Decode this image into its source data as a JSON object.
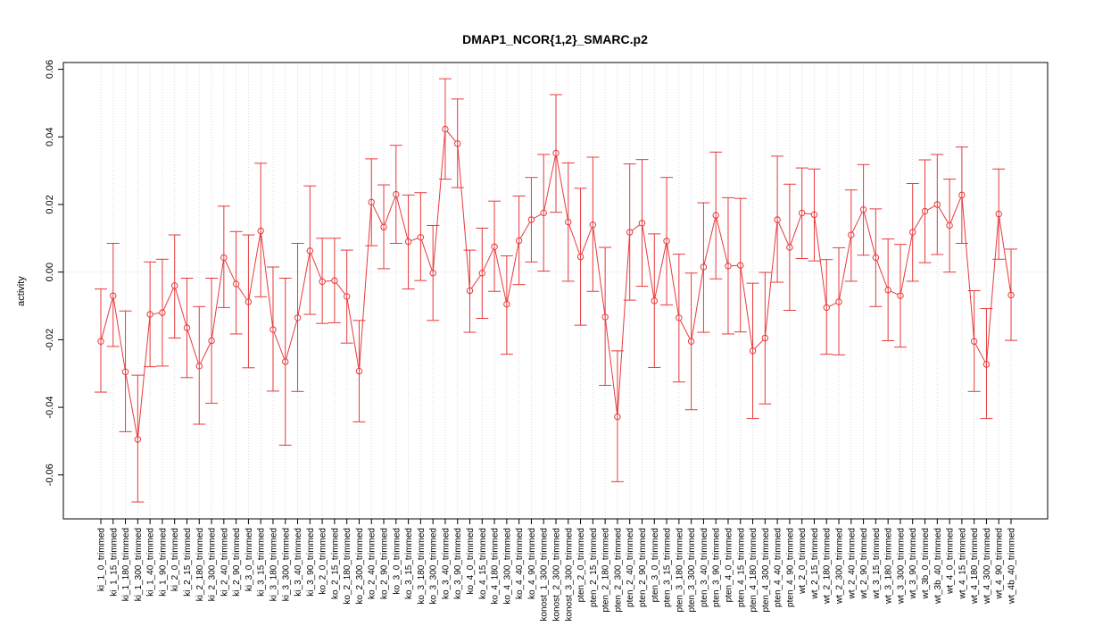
{
  "chart_data": {
    "type": "line",
    "title": "DMAP1_NCOR{1,2}_SMARC.p2",
    "xlabel": "",
    "ylabel": "activity",
    "ylim": [
      -0.073,
      0.062
    ],
    "yticks": [
      -0.06,
      -0.04,
      -0.02,
      0.0,
      0.02,
      0.04,
      0.06
    ],
    "ytick_labels": [
      "-0.06",
      "-0.04",
      "-0.02",
      "0.00",
      "0.02",
      "0.04",
      "0.06"
    ],
    "grid": true,
    "legend": "none",
    "colors": {
      "series": "#e8393b",
      "grid": "#d3d3d3",
      "axis": "#000000"
    },
    "series": [
      {
        "categories": [
          "ki_1_0_trimmed",
          "ki_1_15_trimmed",
          "ki_1_180_trimmed",
          "ki_1_300_trimmed",
          "ki_1_40_trimmed",
          "ki_1_90_trimmed",
          "ki_2_0_trimmed",
          "ki_2_15_trimmed",
          "ki_2_180_trimmed",
          "ki_2_300_trimmed",
          "ki_2_40_trimmed",
          "ki_2_90_trimmed",
          "ki_3_0_trimmed",
          "ki_3_15_trimmed",
          "ki_3_180_trimmed",
          "ki_3_300_trimmed",
          "ki_3_40_trimmed",
          "ki_3_90_trimmed",
          "ko_2_0_trimmed",
          "ko_2_15_trimmed",
          "ko_2_180_trimmed",
          "ko_2_300_trimmed",
          "ko_2_40_trimmed",
          "ko_2_90_trimmed",
          "ko_3_0_trimmed",
          "ko_3_15_trimmed",
          "ko_3_180_trimmed",
          "ko_3_300_trimmed",
          "ko_3_40_trimmed",
          "ko_3_90_trimmed",
          "ko_4_0_trimmed",
          "ko_4_15_trimmed",
          "ko_4_180_trimmed",
          "ko_4_300_trimmed",
          "ko_4_40_trimmed",
          "ko_4_90_trimmed",
          "konost_1_300_trimmed",
          "konost_2_300_trimmed",
          "konost_3_300_trimmed",
          "pten_2_0_trimmed",
          "pten_2_15_trimmed",
          "pten_2_180_trimmed",
          "pten_2_300_trimmed",
          "pten_2_40_trimmed",
          "pten_2_90_trimmed",
          "pten_3_0_trimmed",
          "pten_3_15_trimmed",
          "pten_3_180_trimmed",
          "pten_3_300_trimmed",
          "pten_3_40_trimmed",
          "pten_3_90_trimmed",
          "pten_4_0_trimmed",
          "pten_4_15_trimmed",
          "pten_4_180_trimmed",
          "pten_4_300_trimmed",
          "pten_4_40_trimmed",
          "pten_4_90_trimmed",
          "wt_2_0_trimmed",
          "wt_2_15_trimmed",
          "wt_2_180_trimmed",
          "wt_2_300_trimmed",
          "wt_2_40_trimmed",
          "wt_2_90_trimmed",
          "wt_3_15_trimmed",
          "wt_3_180_trimmed",
          "wt_3_300_trimmed",
          "wt_3_90_trimmed",
          "wt_3b_0_trimmed",
          "wt_3b_40_trimmed",
          "wt_4_0_trimmed",
          "wt_4_15_trimmed",
          "wt_4_180_trimmed",
          "wt_4_300_trimmed",
          "wt_4_90_trimmed",
          "wt_4b_40_trimmed"
        ],
        "values": [
          -0.0205,
          -0.007,
          -0.0295,
          -0.0495,
          -0.0125,
          -0.012,
          -0.004,
          -0.0165,
          -0.0278,
          -0.0203,
          0.0043,
          -0.0035,
          -0.0088,
          0.0122,
          -0.017,
          -0.0265,
          -0.0135,
          0.0063,
          -0.0028,
          -0.0025,
          -0.0072,
          -0.0293,
          0.0207,
          0.0133,
          0.023,
          0.009,
          0.0103,
          -0.0003,
          0.0423,
          0.038,
          -0.0055,
          -0.0003,
          0.0075,
          -0.0095,
          0.0093,
          0.0155,
          0.0175,
          0.0352,
          0.0148,
          0.0045,
          0.014,
          -0.0133,
          -0.0428,
          0.0118,
          0.0145,
          -0.0085,
          0.0092,
          -0.0135,
          -0.0205,
          0.0015,
          0.0168,
          0.0018,
          0.002,
          -0.0233,
          -0.0195,
          0.0155,
          0.0073,
          0.0175,
          0.017,
          -0.0105,
          -0.0088,
          0.011,
          0.0185,
          0.0043,
          -0.0053,
          -0.007,
          0.0118,
          0.018,
          0.02,
          0.0138,
          0.0228,
          -0.0205,
          -0.0273,
          0.0172,
          -0.0068
        ],
        "lower": [
          -0.0355,
          -0.022,
          -0.0472,
          -0.068,
          -0.028,
          -0.0278,
          -0.0195,
          -0.0312,
          -0.045,
          -0.0388,
          -0.0105,
          -0.0183,
          -0.0283,
          -0.0073,
          -0.0352,
          -0.0512,
          -0.0353,
          -0.0125,
          -0.0152,
          -0.015,
          -0.021,
          -0.0443,
          0.0078,
          0.001,
          0.0085,
          -0.005,
          -0.0025,
          -0.0143,
          0.0275,
          0.025,
          -0.0178,
          -0.0137,
          -0.0057,
          -0.0243,
          -0.0037,
          0.003,
          0.0003,
          0.0177,
          -0.0027,
          -0.0157,
          -0.0057,
          -0.0335,
          -0.062,
          -0.0083,
          -0.0042,
          -0.0282,
          -0.0097,
          -0.0325,
          -0.0407,
          -0.0178,
          -0.002,
          -0.0183,
          -0.0177,
          -0.0433,
          -0.039,
          -0.003,
          -0.0113,
          0.004,
          0.0033,
          -0.0243,
          -0.0245,
          -0.0027,
          0.005,
          -0.0102,
          -0.0203,
          -0.0222,
          -0.0027,
          0.0028,
          0.0052,
          0.0,
          0.0085,
          -0.0353,
          -0.0433,
          0.0038,
          -0.0202
        ],
        "upper": [
          -0.005,
          0.0085,
          -0.0115,
          -0.0305,
          0.003,
          0.0038,
          0.011,
          -0.0018,
          -0.0102,
          -0.0018,
          0.0195,
          0.012,
          0.011,
          0.0322,
          0.0015,
          -0.0018,
          0.0085,
          0.0255,
          0.01,
          0.01,
          0.0065,
          -0.0143,
          0.0335,
          0.0258,
          0.0375,
          0.0228,
          0.0235,
          0.0138,
          0.0572,
          0.0512,
          0.0065,
          0.013,
          0.021,
          0.0048,
          0.0225,
          0.028,
          0.0348,
          0.0525,
          0.0323,
          0.0248,
          0.034,
          0.0073,
          -0.0233,
          0.032,
          0.0333,
          0.0113,
          0.028,
          0.0053,
          -0.0003,
          0.0205,
          0.0355,
          0.022,
          0.0218,
          -0.0033,
          -0.0001,
          0.0343,
          0.026,
          0.0308,
          0.0305,
          0.0037,
          0.0072,
          0.0243,
          0.0318,
          0.0187,
          0.0098,
          0.0082,
          0.0262,
          0.0332,
          0.0348,
          0.0275,
          0.037,
          -0.0055,
          -0.0108,
          0.0305,
          0.0068
        ]
      }
    ]
  }
}
